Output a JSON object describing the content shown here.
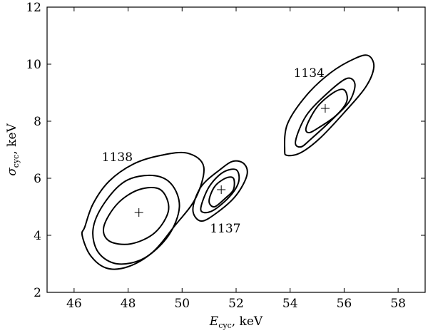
{
  "chart_data": {
    "type": "contour",
    "xlabel": {
      "symbol": "E",
      "subscript": "cyc",
      "unit": ", keV"
    },
    "ylabel": {
      "symbol": "σ",
      "subscript": "cyc",
      "unit": ", keV"
    },
    "xlim": [
      45,
      59
    ],
    "ylim": [
      2,
      12
    ],
    "xticks": [
      46,
      48,
      50,
      52,
      54,
      56,
      58
    ],
    "yticks": [
      2,
      4,
      6,
      8,
      10,
      12
    ],
    "grid": false,
    "groups": [
      {
        "label": "1138",
        "label_pos": {
          "x": 47.6,
          "y": 6.6
        },
        "best_fit": {
          "x": 48.4,
          "y": 4.8
        },
        "contours": [
          [
            [
              46.4,
              4.3
            ],
            [
              46.7,
              5.1
            ],
            [
              47.3,
              5.9
            ],
            [
              48.2,
              6.5
            ],
            [
              49.2,
              6.8
            ],
            [
              50.2,
              6.88
            ],
            [
              50.8,
              6.4
            ],
            [
              50.5,
              5.3
            ],
            [
              49.7,
              4.3
            ],
            [
              48.9,
              3.4
            ],
            [
              48.0,
              2.9
            ],
            [
              47.2,
              2.85
            ],
            [
              46.6,
              3.3
            ],
            [
              46.3,
              4.0
            ],
            [
              46.4,
              4.3
            ]
          ],
          [
            [
              46.7,
              4.2
            ],
            [
              47.1,
              5.1
            ],
            [
              47.9,
              5.9
            ],
            [
              48.9,
              6.1
            ],
            [
              49.6,
              5.8
            ],
            [
              49.9,
              5.0
            ],
            [
              49.5,
              4.0
            ],
            [
              48.6,
              3.2
            ],
            [
              47.6,
              3.0
            ],
            [
              46.9,
              3.4
            ],
            [
              46.7,
              4.2
            ]
          ],
          [
            [
              47.1,
              4.3
            ],
            [
              47.6,
              5.1
            ],
            [
              48.4,
              5.6
            ],
            [
              49.2,
              5.6
            ],
            [
              49.5,
              4.9
            ],
            [
              49.0,
              4.1
            ],
            [
              48.1,
              3.7
            ],
            [
              47.3,
              3.8
            ],
            [
              47.1,
              4.3
            ]
          ]
        ]
      },
      {
        "label": "1137",
        "label_pos": {
          "x": 51.6,
          "y": 4.1
        },
        "best_fit": {
          "x": 51.45,
          "y": 5.6
        },
        "contours": [
          [
            [
              50.4,
              4.9
            ],
            [
              50.7,
              5.7
            ],
            [
              51.4,
              6.3
            ],
            [
              51.9,
              6.6
            ],
            [
              52.3,
              6.5
            ],
            [
              52.4,
              6.1
            ],
            [
              52.0,
              5.4
            ],
            [
              51.3,
              4.8
            ],
            [
              50.7,
              4.5
            ],
            [
              50.4,
              4.9
            ]
          ],
          [
            [
              50.7,
              5.0
            ],
            [
              51.0,
              5.7
            ],
            [
              51.5,
              6.2
            ],
            [
              52.0,
              6.3
            ],
            [
              52.1,
              5.9
            ],
            [
              51.8,
              5.4
            ],
            [
              51.2,
              4.9
            ],
            [
              50.8,
              4.8
            ],
            [
              50.7,
              5.0
            ]
          ],
          [
            [
              51.0,
              5.2
            ],
            [
              51.2,
              5.7
            ],
            [
              51.6,
              6.0
            ],
            [
              51.9,
              6.0
            ],
            [
              51.9,
              5.6
            ],
            [
              51.6,
              5.3
            ],
            [
              51.2,
              5.0
            ],
            [
              51.0,
              5.2
            ]
          ]
        ]
      },
      {
        "label": "1134",
        "label_pos": {
          "x": 54.7,
          "y": 9.55
        },
        "best_fit": {
          "x": 55.3,
          "y": 8.45
        },
        "contours": [
          [
            [
              53.8,
              7.0
            ],
            [
              53.9,
              7.9
            ],
            [
              54.6,
              8.9
            ],
            [
              55.5,
              9.7
            ],
            [
              56.4,
              10.2
            ],
            [
              56.9,
              10.3
            ],
            [
              57.1,
              9.9
            ],
            [
              56.8,
              9.2
            ],
            [
              56.0,
              8.3
            ],
            [
              55.1,
              7.4
            ],
            [
              54.4,
              6.9
            ],
            [
              53.9,
              6.8
            ],
            [
              53.8,
              7.0
            ]
          ],
          [
            [
              54.2,
              7.3
            ],
            [
              54.6,
              8.2
            ],
            [
              55.4,
              9.0
            ],
            [
              56.1,
              9.5
            ],
            [
              56.4,
              9.3
            ],
            [
              56.2,
              8.7
            ],
            [
              55.6,
              8.1
            ],
            [
              54.8,
              7.4
            ],
            [
              54.4,
              7.1
            ],
            [
              54.2,
              7.3
            ]
          ],
          [
            [
              54.6,
              7.8
            ],
            [
              55.0,
              8.5
            ],
            [
              55.6,
              9.0
            ],
            [
              56.0,
              9.1
            ],
            [
              56.1,
              8.7
            ],
            [
              55.7,
              8.2
            ],
            [
              55.1,
              7.8
            ],
            [
              54.7,
              7.6
            ],
            [
              54.6,
              7.8
            ]
          ]
        ]
      }
    ]
  }
}
